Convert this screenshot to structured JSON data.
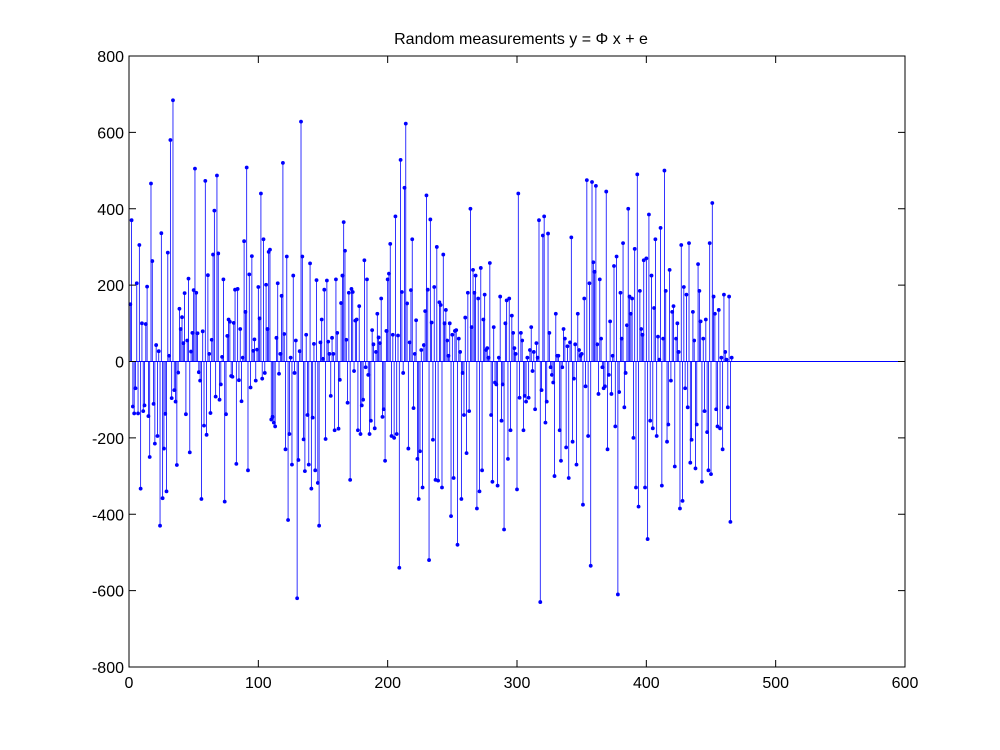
{
  "chart_data": {
    "type": "stem",
    "title": "Random measurements y = Φ x + e",
    "xlabel": "",
    "ylabel": "",
    "xlim": [
      0,
      600
    ],
    "ylim": [
      -800,
      800
    ],
    "xticks": [
      0,
      100,
      200,
      300,
      400,
      500,
      600
    ],
    "yticks": [
      -800,
      -600,
      -400,
      -200,
      0,
      200,
      400,
      600,
      800
    ],
    "xtick_labels": [
      "0",
      "100",
      "200",
      "300",
      "400",
      "500",
      "600"
    ],
    "ytick_labels": [
      "-800",
      "-600",
      "-400",
      "-200",
      "0",
      "200",
      "400",
      "600",
      "800"
    ],
    "grid": false,
    "colors": {
      "series": "#0000ff",
      "axes": "#000000",
      "background": "#ffffff"
    },
    "series": [
      {
        "marker": "dot",
        "x_start": 1,
        "x_step": 1,
        "values": [
          150,
          370,
          -118,
          -136,
          -70,
          205,
          -136,
          305,
          -333,
          100,
          -130,
          -115,
          98,
          196,
          -143,
          -250,
          466,
          263,
          -111,
          -215,
          43,
          -195,
          27,
          -430,
          336,
          -358,
          -228,
          -137,
          -340,
          285,
          15,
          580,
          -96,
          684,
          -75,
          -105,
          -271,
          -29,
          138,
          85,
          116,
          48,
          179,
          -138,
          55,
          217,
          -238,
          26,
          75,
          187,
          505,
          180,
          74,
          -28,
          -50,
          -360,
          79,
          -168,
          473,
          -192,
          226,
          20,
          -135,
          57,
          280,
          395,
          -92,
          487,
          283,
          -100,
          -60,
          12,
          215,
          -367,
          -138,
          67,
          110,
          104,
          -38,
          -40,
          101,
          188,
          -268,
          190,
          -49,
          85,
          -104,
          10,
          315,
          130,
          508,
          -285,
          228,
          -68,
          276,
          28,
          58,
          -50,
          31,
          195,
          113,
          440,
          -45,
          320,
          -30,
          201,
          85,
          287,
          293,
          -152,
          -145,
          -160,
          -170,
          62,
          205,
          -32,
          20,
          172,
          520,
          72,
          -230,
          275,
          -415,
          -190,
          10,
          -270,
          225,
          -30,
          55,
          -620,
          -258,
          27,
          628,
          275,
          -204,
          -287,
          70,
          -140,
          -270,
          257,
          -333,
          -147,
          46,
          -285,
          213,
          -318,
          -430,
          50,
          110,
          7,
          188,
          -203,
          212,
          52,
          20,
          -90,
          62,
          20,
          -180,
          215,
          75,
          -176,
          -48,
          153,
          225,
          365,
          290,
          57,
          -108,
          180,
          -310,
          190,
          182,
          -25,
          107,
          110,
          -180,
          145,
          -190,
          -115,
          -100,
          265,
          -15,
          215,
          -35,
          -190,
          -155,
          82,
          45,
          -175,
          25,
          125,
          63,
          48,
          165,
          -145,
          -125,
          -260,
          80,
          215,
          230,
          308,
          -195,
          70,
          -200,
          380,
          -190,
          68,
          -540,
          528,
          182,
          -30,
          455,
          623,
          152,
          -228,
          50,
          187,
          320,
          -122,
          20,
          108,
          -255,
          -360,
          -235,
          30,
          -330,
          43,
          132,
          435,
          188,
          -520,
          372,
          102,
          -205,
          195,
          -310,
          300,
          -312,
          155,
          148,
          -330,
          280,
          100,
          135,
          55,
          15,
          100,
          -405,
          70,
          -305,
          80,
          82,
          -480,
          60,
          25,
          -360,
          -30,
          -140,
          115,
          -240,
          180,
          -130,
          400,
          90,
          240,
          180,
          225,
          -385,
          165,
          -340,
          245,
          -285,
          110,
          175,
          30,
          35,
          10,
          258,
          -140,
          -315,
          90,
          -55,
          -60,
          -325,
          10,
          170,
          -155,
          -60,
          -440,
          100,
          160,
          -255,
          165,
          -180,
          120,
          75,
          35,
          20,
          -335,
          440,
          -95,
          75,
          55,
          -180,
          -90,
          -105,
          10,
          -95,
          30,
          90,
          -25,
          25,
          -125,
          48,
          10,
          370,
          -630,
          -75,
          330,
          380,
          -160,
          -105,
          335,
          75,
          -15,
          -35,
          -55,
          -300,
          125,
          15,
          15,
          -180,
          -260,
          -15,
          85,
          60,
          -225,
          40,
          -305,
          50,
          325,
          -210,
          -45,
          45,
          -270,
          125,
          30,
          15,
          20,
          -375,
          165,
          -65,
          475,
          -195,
          205,
          -535,
          470,
          260,
          235,
          460,
          45,
          -85,
          215,
          60,
          -15,
          -70,
          -65,
          445,
          -230,
          -35,
          105,
          -85,
          15,
          250,
          -170,
          275,
          -610,
          -80,
          180,
          60,
          310,
          -120,
          -30,
          95,
          400,
          170,
          125,
          165,
          -200,
          295,
          -330,
          490,
          -380,
          185,
          85,
          70,
          265,
          -330,
          270,
          -465,
          385,
          -155,
          225,
          -175,
          140,
          320,
          -195,
          65,
          5,
          350,
          -325,
          60,
          500,
          185,
          -210,
          -165,
          240,
          -50,
          130,
          145,
          -275,
          60,
          100,
          25,
          -385,
          305,
          -365,
          195,
          -70,
          175,
          -120,
          310,
          -265,
          -205,
          130,
          55,
          -280,
          -165,
          255,
          185,
          105,
          -315,
          60,
          -130,
          110,
          -185,
          -285,
          310,
          -295,
          415,
          170,
          125,
          -125,
          -170,
          135,
          -175,
          10,
          -230,
          175,
          25,
          5,
          -120,
          170,
          -420,
          10
        ]
      }
    ]
  }
}
